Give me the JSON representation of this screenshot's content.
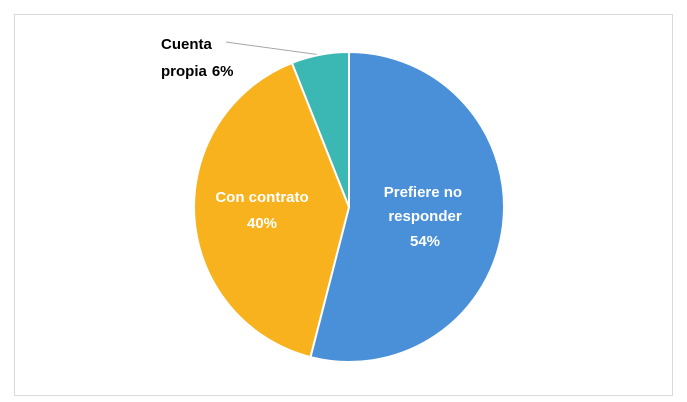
{
  "chart_data": {
    "type": "pie",
    "categories": [
      "Prefiere no responder",
      "Con contrato",
      "Cuenta propia"
    ],
    "values": [
      54,
      40,
      6
    ],
    "value_labels": [
      "54%",
      "40%",
      "6%"
    ],
    "colors": [
      "#4a90d9",
      "#f8b21e",
      "#3bb8b3"
    ]
  }
}
